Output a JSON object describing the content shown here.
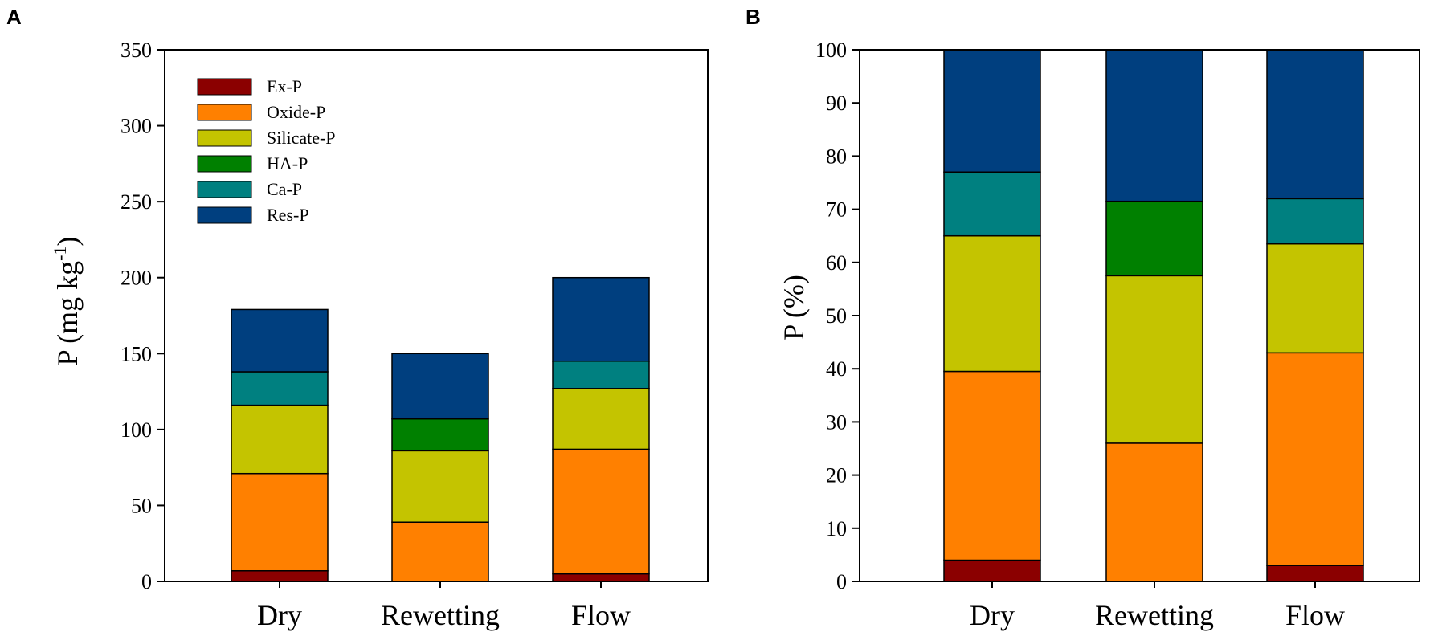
{
  "panel_labels": [
    "A",
    "B"
  ],
  "legend_series_names": [
    "Ex-P",
    "Oxide-P",
    "Silicate-P",
    "HA-P",
    "Ca-P",
    "Res-P"
  ],
  "chart_data": [
    {
      "type": "bar",
      "stacked": true,
      "panel": "A",
      "categories": [
        "Dry",
        "Rewetting",
        "Flow"
      ],
      "series": [
        {
          "name": "Ex-P",
          "color": "#8B0000",
          "values": [
            7,
            0,
            5
          ]
        },
        {
          "name": "Oxide-P",
          "color": "#FF8000",
          "values": [
            64,
            39,
            82
          ]
        },
        {
          "name": "Silicate-P",
          "color": "#C4C400",
          "values": [
            45,
            47,
            40
          ]
        },
        {
          "name": "HA-P",
          "color": "#008000",
          "values": [
            0,
            21,
            0
          ]
        },
        {
          "name": "Ca-P",
          "color": "#008080",
          "values": [
            22,
            0,
            18
          ]
        },
        {
          "name": "Res-P",
          "color": "#003F7F",
          "values": [
            41,
            43,
            55
          ]
        }
      ],
      "ylabel_main": "P (mg kg",
      "ylabel_sup": "-1",
      "ylabel_end": ")",
      "xlabel": "",
      "ylim": [
        0,
        350
      ],
      "yticks": [
        "0",
        "50",
        "100",
        "150",
        "200",
        "250",
        "300",
        "350"
      ],
      "legend": "top-left"
    },
    {
      "type": "bar",
      "stacked": true,
      "panel": "B",
      "categories": [
        "Dry",
        "Rewetting",
        "Flow"
      ],
      "series": [
        {
          "name": "Ex-P",
          "color": "#8B0000",
          "values": [
            4,
            0,
            3
          ]
        },
        {
          "name": "Oxide-P",
          "color": "#FF8000",
          "values": [
            35.5,
            26,
            40
          ]
        },
        {
          "name": "Silicate-P",
          "color": "#C4C400",
          "values": [
            25.5,
            31.5,
            20.5
          ]
        },
        {
          "name": "HA-P",
          "color": "#008000",
          "values": [
            0,
            14,
            0
          ]
        },
        {
          "name": "Ca-P",
          "color": "#008080",
          "values": [
            12,
            0,
            8.5
          ]
        },
        {
          "name": "Res-P",
          "color": "#003F7F",
          "values": [
            23,
            28.5,
            28
          ]
        }
      ],
      "ylabel": "P (%)",
      "xlabel": "",
      "ylim": [
        0,
        100
      ],
      "yticks": [
        "0",
        "10",
        "20",
        "30",
        "40",
        "50",
        "60",
        "70",
        "80",
        "90",
        "100"
      ]
    }
  ]
}
